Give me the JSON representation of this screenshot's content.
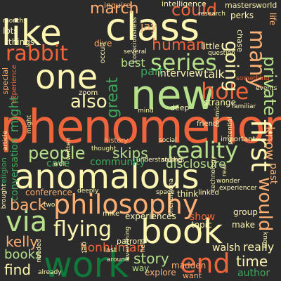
{
  "palette": {
    "background": "#2b2b2b",
    "cream": "#fdf6b2",
    "orange": "#f0643c",
    "peach": "#fcae73",
    "light_green": "#b6e08a",
    "green": "#3fa65c",
    "dark_green": "#0e7a3a",
    "red": "#d7301f"
  },
  "words": {
    "phenomenon": "phenomenon",
    "anomalous": "anomalous",
    "like": "like",
    "class": "class",
    "one": "one",
    "new": "new",
    "book": "book",
    "philosophy": "philosophy",
    "rabbit": "rabbit",
    "series": "series",
    "hole": "hole",
    "reality": "reality",
    "people": "people",
    "work": "work",
    "via": "via",
    "flying": "flying",
    "also": "also",
    "could": "could",
    "march": "march",
    "first": "first",
    "would": "would",
    "know": "know",
    "human": "human",
    "going": "going",
    "many": "many",
    "private": "private",
    "great": "great",
    "might": "might",
    "skips": "skips",
    "back": "back",
    "end": "end",
    "kelly": "kelly",
    "books": "books",
    "find": "find",
    "nonhuman": "nonhuman",
    "story": "story",
    "time": "time",
    "really": "really",
    "author": "author",
    "disclosure": "disclosure",
    "community": "community",
    "conversation": "conversation",
    "cave": "cave",
    "interview": "interview",
    "talk": "talk",
    "part": "part",
    "best": "best",
    "show": "show",
    "make": "make",
    "group": "group",
    "past": "past",
    "walsh": "walsh",
    "madden": "madden",
    "explore": "explore",
    "way": "way",
    "experiences": "experiences",
    "conference": "conference",
    "topic": "topic",
    "jay": "jay",
    "dive": "dive",
    "inquire": "inquire",
    "intelligence": "intelligence",
    "masters": "masters",
    "world": "world",
    "perks": "perks",
    "life": "life",
    "research": "research",
    "things": "things",
    "lots": "lots",
    "months": "months",
    "little": "little",
    "question": "question",
    "strange": "strange",
    "deep": "deep",
    "friend": "friend",
    "history": "history",
    "important": "important",
    "think": "think",
    "linked": "linked",
    "last": "last",
    "patron": "patron",
    "mike": "mike",
    "already": "already",
    "needed": "needed",
    "space": "space",
    "special": "special",
    "religion": "religion",
    "experience": "experience",
    "zoom": "zoom",
    "occult": "occult",
    "consciousness": "consciousness",
    "thought": "thought",
    "written": "written",
    "get": "get",
    "two": "two",
    "well": "well",
    "around": "around",
    "everything": "everything",
    "want": "want",
    "know2": "know",
    "events": "events",
    "something": "something",
    "familiar": "familiar",
    "cosmic": "cosmic",
    "potential": "potential",
    "phenomena": "phenomena",
    "several": "several",
    "mind": "mind",
    "real": "real",
    "field": "field",
    "studies": "studies",
    "technology": "technology",
    "understanding": "understanding",
    "deeply": "deeply",
    "social": "social",
    "might2": "might",
    "article": "article",
    "brought": "brought",
    "wonder": "wonder",
    "experiencer": "experiencer",
    "chase": "chase"
  }
}
